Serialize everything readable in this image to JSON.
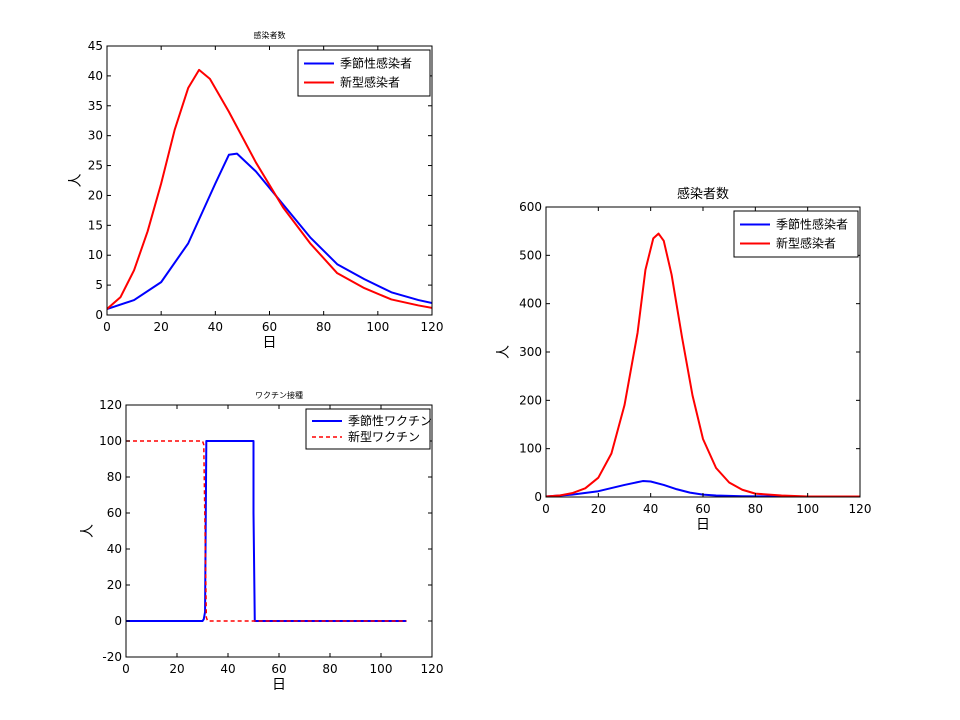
{
  "chart_data": [
    {
      "type": "line",
      "title": "感染者数",
      "xlabel": "日",
      "ylabel": "人",
      "xlim": [
        0,
        120
      ],
      "ylim": [
        0,
        45
      ],
      "xticks": [
        0,
        20,
        40,
        60,
        80,
        100,
        120
      ],
      "yticks": [
        0,
        5,
        10,
        15,
        20,
        25,
        30,
        35,
        40,
        45
      ],
      "legend_position": "top-right",
      "series": [
        {
          "name": "季節性感染者",
          "color": "#0000ff",
          "dash": "solid",
          "points": [
            [
              0,
              1
            ],
            [
              10,
              2.5
            ],
            [
              20,
              5.5
            ],
            [
              30,
              12
            ],
            [
              40,
              22
            ],
            [
              45,
              26.8
            ],
            [
              48,
              27
            ],
            [
              55,
              24
            ],
            [
              65,
              18.5
            ],
            [
              75,
              13
            ],
            [
              85,
              8.5
            ],
            [
              95,
              6
            ],
            [
              105,
              3.8
            ],
            [
              115,
              2.5
            ],
            [
              120,
              2
            ]
          ]
        },
        {
          "name": "新型感染者",
          "color": "#ff0000",
          "dash": "solid",
          "points": [
            [
              0,
              1
            ],
            [
              5,
              3
            ],
            [
              10,
              7.5
            ],
            [
              15,
              14
            ],
            [
              20,
              22
            ],
            [
              25,
              31
            ],
            [
              30,
              38
            ],
            [
              34,
              41
            ],
            [
              38,
              39.5
            ],
            [
              45,
              34
            ],
            [
              55,
              25.5
            ],
            [
              65,
              18
            ],
            [
              75,
              12
            ],
            [
              85,
              7
            ],
            [
              95,
              4.5
            ],
            [
              105,
              2.6
            ],
            [
              115,
              1.6
            ],
            [
              120,
              1.2
            ]
          ]
        }
      ]
    },
    {
      "type": "line",
      "title": "ワクチン接種",
      "xlabel": "日",
      "ylabel": "人",
      "xlim": [
        0,
        120
      ],
      "ylim": [
        -20,
        120
      ],
      "xticks": [
        0,
        20,
        40,
        60,
        80,
        100,
        120
      ],
      "yticks": [
        -20,
        0,
        20,
        40,
        60,
        80,
        100,
        120
      ],
      "legend_position": "top-right",
      "series": [
        {
          "name": "季節性ワクチン",
          "color": "#0000ff",
          "dash": "solid",
          "points": [
            [
              0,
              0
            ],
            [
              30,
              0
            ],
            [
              30.5,
              1
            ],
            [
              31,
              5
            ],
            [
              31.5,
              100
            ],
            [
              50,
              100
            ],
            [
              50,
              60
            ],
            [
              50.5,
              0
            ],
            [
              110,
              0
            ]
          ]
        },
        {
          "name": "新型ワクチン",
          "color": "#ff0000",
          "dash": "dashed",
          "points": [
            [
              0,
              100
            ],
            [
              30,
              100
            ],
            [
              30.5,
              98
            ],
            [
              31,
              50
            ],
            [
              31.5,
              2
            ],
            [
              32,
              0
            ],
            [
              110,
              0
            ]
          ]
        }
      ]
    },
    {
      "type": "line",
      "title": "感染者数",
      "xlabel": "日",
      "ylabel": "人",
      "xlim": [
        0,
        120
      ],
      "ylim": [
        0,
        600
      ],
      "xticks": [
        0,
        20,
        40,
        60,
        80,
        100,
        120
      ],
      "yticks": [
        0,
        100,
        200,
        300,
        400,
        500,
        600
      ],
      "legend_position": "top-right",
      "series": [
        {
          "name": "季節性感染者",
          "color": "#0000ff",
          "dash": "solid",
          "points": [
            [
              0,
              1
            ],
            [
              10,
              5
            ],
            [
              20,
              12
            ],
            [
              30,
              25
            ],
            [
              37,
              33
            ],
            [
              40,
              32
            ],
            [
              45,
              25
            ],
            [
              50,
              16
            ],
            [
              55,
              9
            ],
            [
              60,
              5
            ],
            [
              65,
              3
            ],
            [
              75,
              1.5
            ],
            [
              90,
              1
            ],
            [
              120,
              1
            ]
          ]
        },
        {
          "name": "新型感染者",
          "color": "#ff0000",
          "dash": "solid",
          "points": [
            [
              0,
              1
            ],
            [
              5,
              3
            ],
            [
              10,
              8
            ],
            [
              15,
              18
            ],
            [
              20,
              40
            ],
            [
              25,
              90
            ],
            [
              30,
              190
            ],
            [
              35,
              340
            ],
            [
              38,
              470
            ],
            [
              41,
              535
            ],
            [
              43,
              545
            ],
            [
              45,
              530
            ],
            [
              48,
              460
            ],
            [
              52,
              330
            ],
            [
              56,
              210
            ],
            [
              60,
              120
            ],
            [
              65,
              60
            ],
            [
              70,
              30
            ],
            [
              75,
              15
            ],
            [
              80,
              7
            ],
            [
              90,
              3
            ],
            [
              100,
              1
            ],
            [
              120,
              1
            ]
          ]
        }
      ]
    }
  ]
}
